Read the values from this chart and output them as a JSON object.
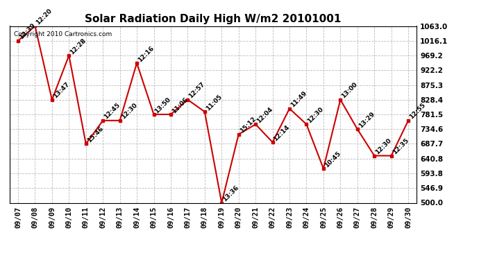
{
  "title": "Solar Radiation Daily High W/m2 20101001",
  "copyright_text": "Copyright 2010 Cartronics.com",
  "dates": [
    "09/07",
    "09/08",
    "09/09",
    "09/10",
    "09/11",
    "09/12",
    "09/13",
    "09/14",
    "09/15",
    "09/16",
    "09/17",
    "09/18",
    "09/19",
    "09/20",
    "09/21",
    "09/22",
    "09/23",
    "09/24",
    "09/25",
    "09/26",
    "09/27",
    "09/28",
    "09/29",
    "09/30"
  ],
  "values": [
    1016.1,
    1063.0,
    828.4,
    969.2,
    687.7,
    762.0,
    762.0,
    945.0,
    781.5,
    781.5,
    828.4,
    790.0,
    500.0,
    718.0,
    750.0,
    693.0,
    800.0,
    750.0,
    609.0,
    828.4,
    734.6,
    650.0,
    650.0,
    762.0
  ],
  "time_labels": [
    "12:39",
    "12:20",
    "13:47",
    "12:28",
    "15:46",
    "12:45",
    "12:30",
    "12:16",
    "13:50",
    "11:06",
    "12:57",
    "11:05",
    "13:36",
    "15:12",
    "12:04",
    "12:14",
    "11:49",
    "12:30",
    "10:45",
    "13:00",
    "13:29",
    "12:30",
    "12:35",
    "12:55"
  ],
  "ylim": [
    500.0,
    1063.0
  ],
  "yticks": [
    500.0,
    546.9,
    593.8,
    640.8,
    687.7,
    734.6,
    781.5,
    828.4,
    875.3,
    922.2,
    969.2,
    1016.1,
    1063.0
  ],
  "line_color": "#cc0000",
  "marker_color": "#cc0000",
  "bg_color": "#ffffff",
  "grid_color": "#bbbbbb",
  "title_fontsize": 11,
  "label_fontsize": 6.5,
  "tick_fontsize": 7.5,
  "copyright_fontsize": 6.5
}
